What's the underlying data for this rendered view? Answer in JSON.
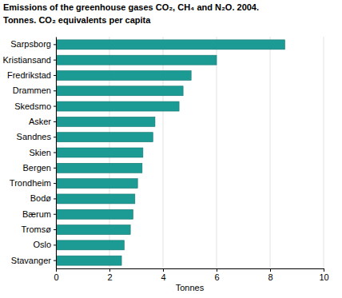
{
  "chart_data": {
    "type": "bar",
    "orientation": "horizontal",
    "title": "Emissions of the greenhouse gases CO₂, CH₄ and N₂O. 2004.",
    "subtitle": "Tonnes. CO₂ equivalents per capita",
    "x_label": "Tonnes",
    "categories": [
      "Sarpsborg",
      "Kristiansand",
      "Fredrikstad",
      "Drammen",
      "Skedsmo",
      "Asker",
      "Sandnes",
      "Skien",
      "Bergen",
      "Trondheim",
      "Bodø",
      "Bærum",
      "Tromsø",
      "Oslo",
      "Stavanger"
    ],
    "values": [
      8.55,
      6.0,
      5.05,
      4.75,
      4.6,
      3.7,
      3.62,
      3.25,
      3.22,
      3.05,
      2.95,
      2.88,
      2.78,
      2.55,
      2.45
    ],
    "color": "#1b9b94",
    "xlim": [
      0,
      10
    ],
    "xticks": [
      0,
      2,
      4,
      6,
      8,
      10
    ],
    "grid": true
  }
}
